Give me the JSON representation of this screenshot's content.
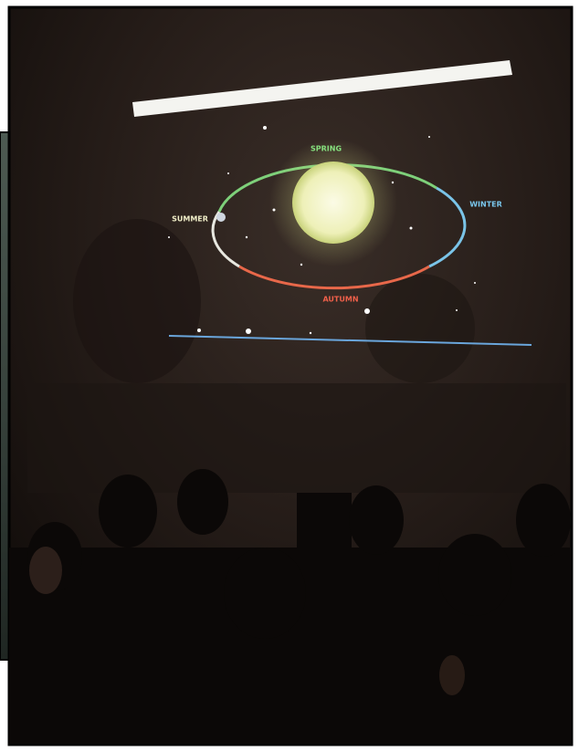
{
  "projection": {
    "labels": [
      "SPRING",
      "SUMMER",
      "WINTER",
      "AUTUMN"
    ]
  }
}
